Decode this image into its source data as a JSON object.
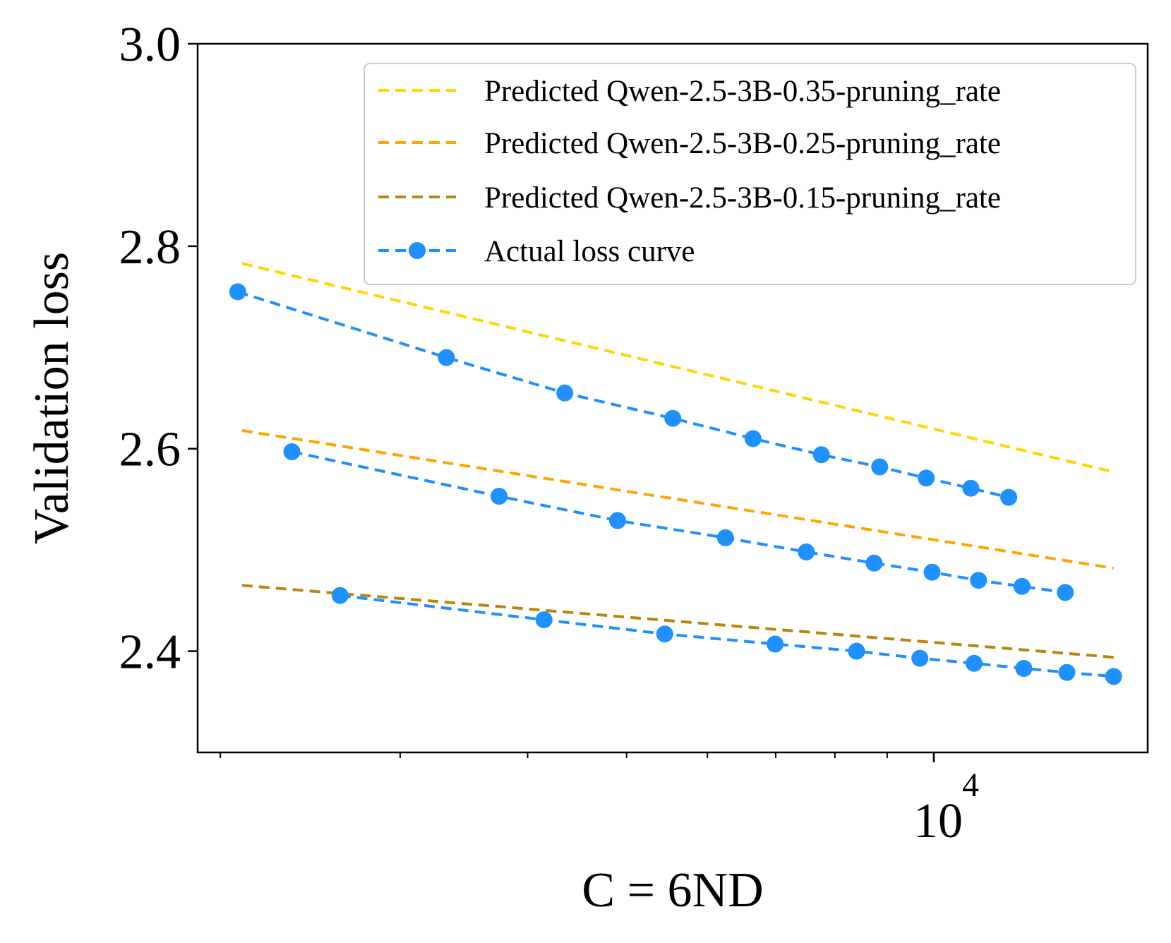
{
  "chart_data": {
    "type": "line",
    "xscale": "log",
    "xlabel": "C = 6ND",
    "ylabel": "Validation loss",
    "xlim": [
      1900,
      16200
    ],
    "ylim": [
      2.3,
      3.0
    ],
    "yticks": [
      2.4,
      2.6,
      2.8,
      3.0
    ],
    "ytick_labels": [
      "2.4",
      "2.6",
      "2.8",
      "3.0"
    ],
    "xtick_label": {
      "base": "10",
      "exponent": "4",
      "value": 10000
    },
    "legend_position": "upper right",
    "legend": [
      "Predicted Qwen-2.5-3B-0.35-pruning_rate",
      "Predicted Qwen-2.5-3B-0.25-pruning_rate",
      "Predicted Qwen-2.5-3B-0.15-pruning_rate",
      "Actual loss curve"
    ],
    "predicted": [
      {
        "name": "Predicted Qwen-2.5-3B-0.35-pruning_rate",
        "color": "#FFD700",
        "x": [
          2100,
          15000
        ],
        "y": [
          2.783,
          2.577
        ]
      },
      {
        "name": "Predicted Qwen-2.5-3B-0.25-pruning_rate",
        "color": "#FFA500",
        "x": [
          2100,
          15000
        ],
        "y": [
          2.618,
          2.482
        ]
      },
      {
        "name": "Predicted Qwen-2.5-3B-0.15-pruning_rate",
        "color": "#B8860B",
        "x": [
          2100,
          15000
        ],
        "y": [
          2.465,
          2.394
        ]
      }
    ],
    "actual": {
      "name": "Actual loss curve",
      "color": "#1E90FF",
      "series": [
        {
          "x": [
            2080,
            3330,
            4350,
            5550,
            6650,
            7760,
            8850,
            9830,
            10870,
            11840
          ],
          "y": [
            2.755,
            2.69,
            2.655,
            2.63,
            2.61,
            2.594,
            2.582,
            2.571,
            2.561,
            2.552
          ]
        },
        {
          "x": [
            2350,
            3750,
            4900,
            6250,
            7500,
            8740,
            9960,
            11060,
            12200,
            13450
          ],
          "y": [
            2.597,
            2.553,
            2.529,
            2.512,
            2.498,
            2.487,
            2.478,
            2.47,
            2.464,
            2.458
          ]
        },
        {
          "x": [
            2620,
            4150,
            5450,
            6990,
            8400,
            9690,
            10950,
            12250,
            13500,
            15000
          ],
          "y": [
            2.455,
            2.431,
            2.417,
            2.407,
            2.4,
            2.393,
            2.388,
            2.383,
            2.379,
            2.375
          ]
        }
      ]
    }
  }
}
